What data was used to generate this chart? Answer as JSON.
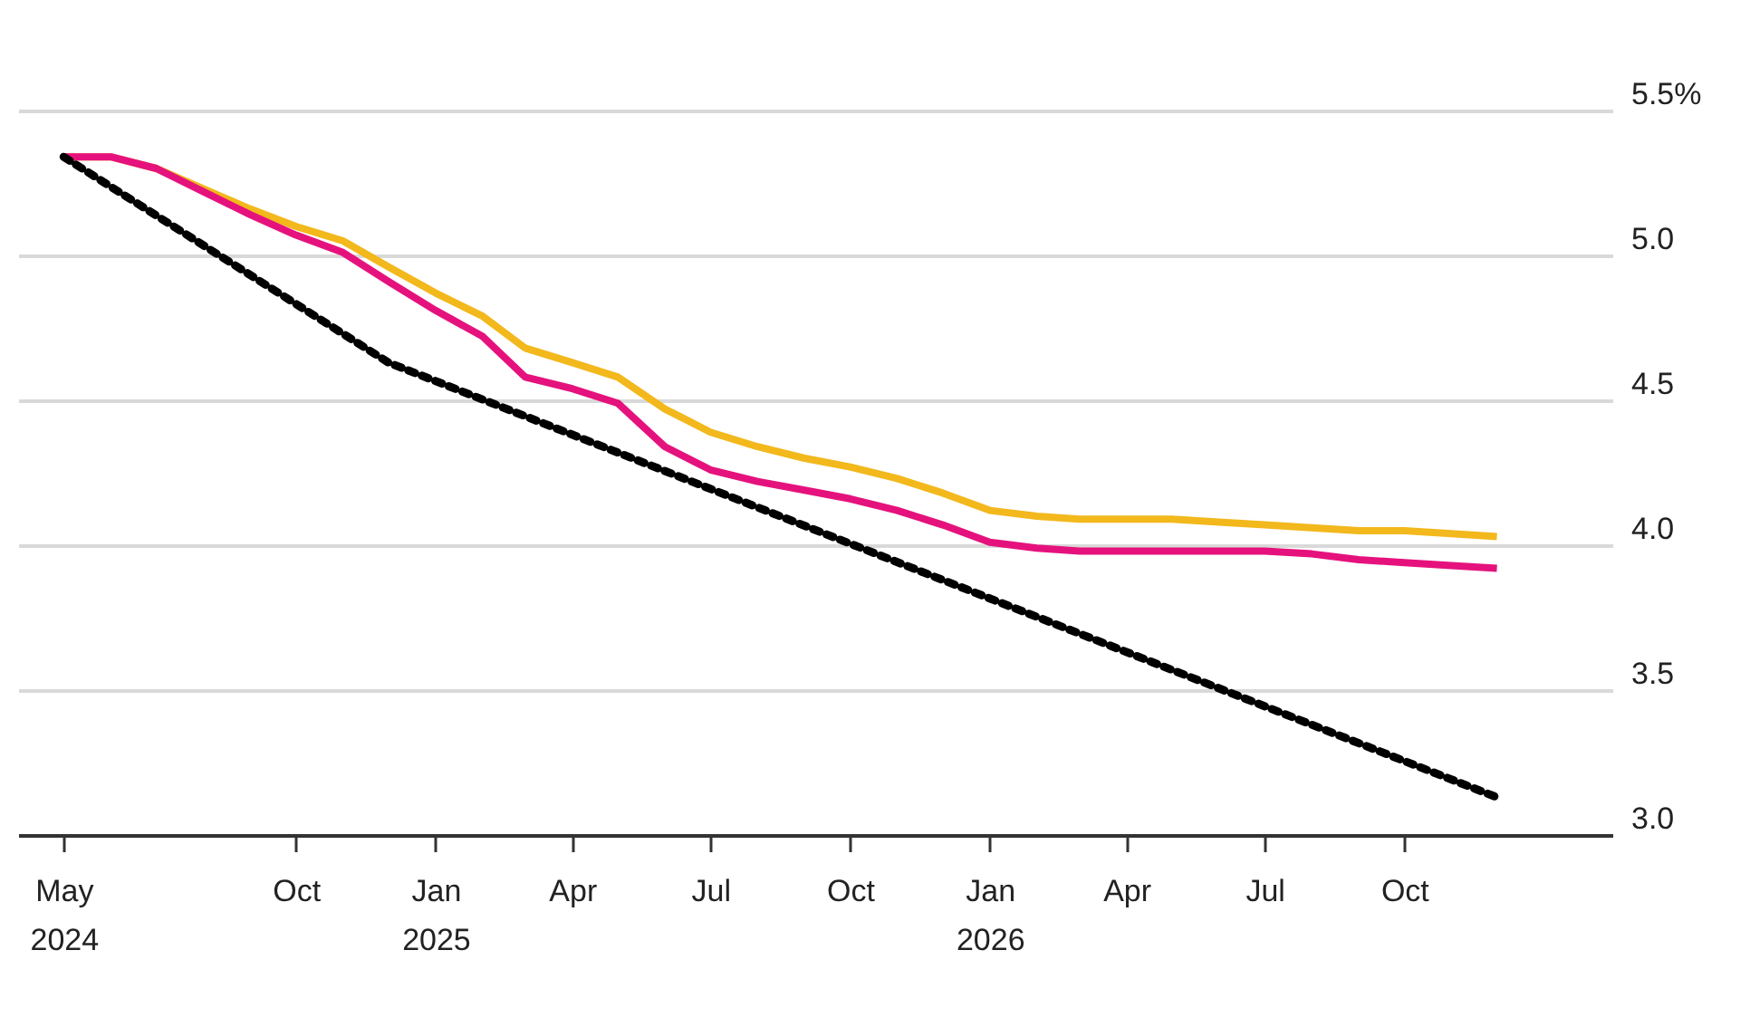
{
  "chart_data": {
    "type": "line",
    "x": [
      "2024-05",
      "2024-06",
      "2024-07",
      "2024-08",
      "2024-09",
      "2024-10",
      "2024-11",
      "2024-12",
      "2025-01",
      "2025-02",
      "2025-03",
      "2025-04",
      "2025-05",
      "2025-06",
      "2025-07",
      "2025-08",
      "2025-09",
      "2025-10",
      "2025-11",
      "2025-12",
      "2026-01",
      "2026-02",
      "2026-03",
      "2026-04",
      "2026-05",
      "2026-06",
      "2026-07",
      "2026-08",
      "2026-09",
      "2026-10",
      "2026-11",
      "2026-12"
    ],
    "series": [
      {
        "color": "#f2b81c",
        "values": [
          5.34,
          5.34,
          5.3,
          5.23,
          5.16,
          5.1,
          5.05,
          4.96,
          4.87,
          4.79,
          4.68,
          4.63,
          4.58,
          4.47,
          4.39,
          4.34,
          4.3,
          4.27,
          4.23,
          4.18,
          4.12,
          4.1,
          4.09,
          4.09,
          4.09,
          4.08,
          4.07,
          4.06,
          4.05,
          4.05,
          4.04,
          4.03
        ]
      },
      {
        "color": "#e5127d",
        "values": [
          5.34,
          5.34,
          5.3,
          5.22,
          5.14,
          5.07,
          5.01,
          4.91,
          4.81,
          4.72,
          4.58,
          4.54,
          4.49,
          4.34,
          4.26,
          4.22,
          4.19,
          4.16,
          4.12,
          4.07,
          4.01,
          3.99,
          3.98,
          3.98,
          3.98,
          3.98,
          3.98,
          3.97,
          3.95,
          3.94,
          3.93,
          3.92
        ]
      },
      {
        "color": "#000000",
        "line_style": "dotted",
        "x": [
          "2024-05",
          "2024-12",
          "2026-12"
        ],
        "values": [
          5.34,
          4.63,
          3.13
        ]
      }
    ],
    "xlim": [
      "2024-04-01",
      "2027-02-15"
    ],
    "xticks": [
      {
        "value": "2024-05",
        "label": "May 2024"
      },
      {
        "value": "2024-10",
        "label": "Oct"
      },
      {
        "value": "2025-01",
        "label": "Jan 2025"
      },
      {
        "value": "2025-04",
        "label": "Apr"
      },
      {
        "value": "2025-07",
        "label": "Jul"
      },
      {
        "value": "2025-10",
        "label": "Oct"
      },
      {
        "value": "2026-01",
        "label": "Jan 2026"
      },
      {
        "value": "2026-04",
        "label": "Apr"
      },
      {
        "value": "2026-07",
        "label": "Jul"
      },
      {
        "value": "2026-10",
        "label": "Oct"
      }
    ],
    "ylim": [
      3.0,
      5.5
    ],
    "yticks": [
      {
        "value": 3.0,
        "label": "3.0"
      },
      {
        "value": 3.5,
        "label": "3.5"
      },
      {
        "value": 4.0,
        "label": "4.0"
      },
      {
        "value": 4.5,
        "label": "4.5"
      },
      {
        "value": 5.0,
        "label": "5.0"
      },
      {
        "value": 5.5,
        "label": "5.5%"
      }
    ],
    "grid": "y"
  }
}
